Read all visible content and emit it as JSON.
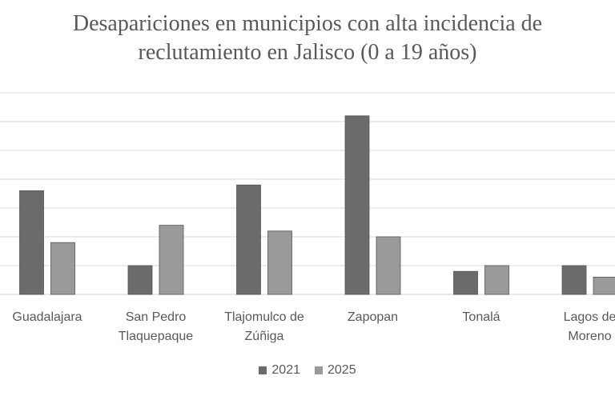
{
  "chart_data": {
    "type": "bar",
    "title_lines": [
      "Desapariciones en municipios con alta incidencia de",
      "reclutamiento en Jalisco (0 a 19 años)"
    ],
    "categories": [
      [
        "Guadalajara"
      ],
      [
        "San Pedro",
        "Tlaquepaque"
      ],
      [
        "Tlajomulco de",
        "Zúñiga"
      ],
      [
        "Zapopan"
      ],
      [
        "Tonalá"
      ],
      [
        "Lagos de",
        "Moreno"
      ]
    ],
    "series": [
      {
        "name": "2021",
        "color": "#6b6b6b",
        "values": [
          18,
          5,
          19,
          31,
          4,
          5
        ]
      },
      {
        "name": "2025",
        "color": "#9a9a9a",
        "values": [
          9,
          12,
          11,
          10,
          5,
          3
        ]
      }
    ],
    "ylim": [
      0,
      35
    ],
    "gridlines": true,
    "legend_position": "bottom-center",
    "gridline_color": "#d9d9d9",
    "bar_border_color": "#555555"
  }
}
